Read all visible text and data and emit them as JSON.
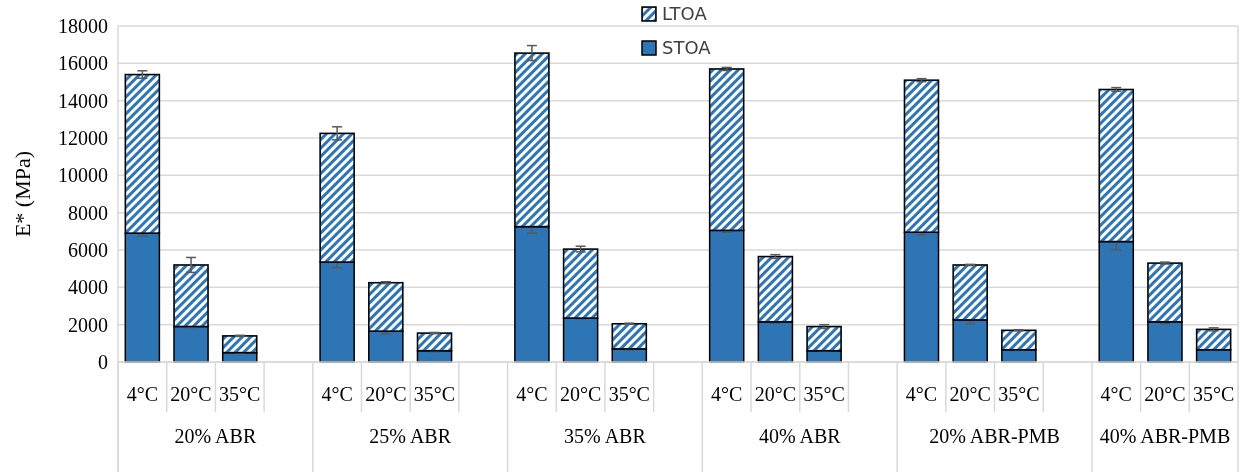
{
  "chart_data": {
    "type": "bar",
    "stacked": true,
    "ylabel": "E* (MPa)",
    "categories": [
      "4°C",
      "20°C",
      "35°C",
      null,
      "4°C",
      "20°C",
      "35°C",
      null,
      "4°C",
      "20°C",
      "35°C",
      null,
      "4°C",
      "20°C",
      "35°C",
      null,
      "4°C",
      "20°C",
      "35°C",
      null,
      "4°C",
      "20°C",
      "35°C"
    ],
    "series": [
      {
        "name": "STOA",
        "color": "#2e75b6",
        "values": [
          6900,
          1900,
          500,
          null,
          5350,
          1650,
          600,
          null,
          7250,
          2350,
          700,
          null,
          7050,
          2150,
          600,
          null,
          6950,
          2250,
          650,
          null,
          6450,
          2150,
          650
        ],
        "errors": [
          150,
          50,
          30,
          null,
          300,
          150,
          50,
          null,
          350,
          50,
          50,
          null,
          100,
          80,
          30,
          null,
          150,
          200,
          30,
          null,
          450,
          100,
          30
        ]
      },
      {
        "name": "LTOA",
        "color": "#2e75b6",
        "values": [
          8500,
          3300,
          900,
          null,
          6900,
          2600,
          950,
          null,
          9300,
          3700,
          1350,
          null,
          8650,
          3500,
          1300,
          null,
          8150,
          2950,
          1050,
          null,
          8150,
          3150,
          1100
        ],
        "errors": [
          200,
          400,
          30,
          null,
          350,
          50,
          30,
          null,
          400,
          150,
          30,
          null,
          80,
          100,
          100,
          null,
          80,
          30,
          30,
          null,
          100,
          50,
          80
        ]
      }
    ],
    "annotations": [
      "20% ABR",
      "25% ABR",
      "35% ABR",
      "40% ABR",
      "20% ABR-PMB",
      "40% ABR-PMB"
    ],
    "ylim": [
      0,
      18000
    ],
    "yticks": [
      0,
      2000,
      4000,
      6000,
      8000,
      10000,
      12000,
      14000,
      16000,
      18000
    ],
    "grid": "y",
    "legend": "top"
  }
}
